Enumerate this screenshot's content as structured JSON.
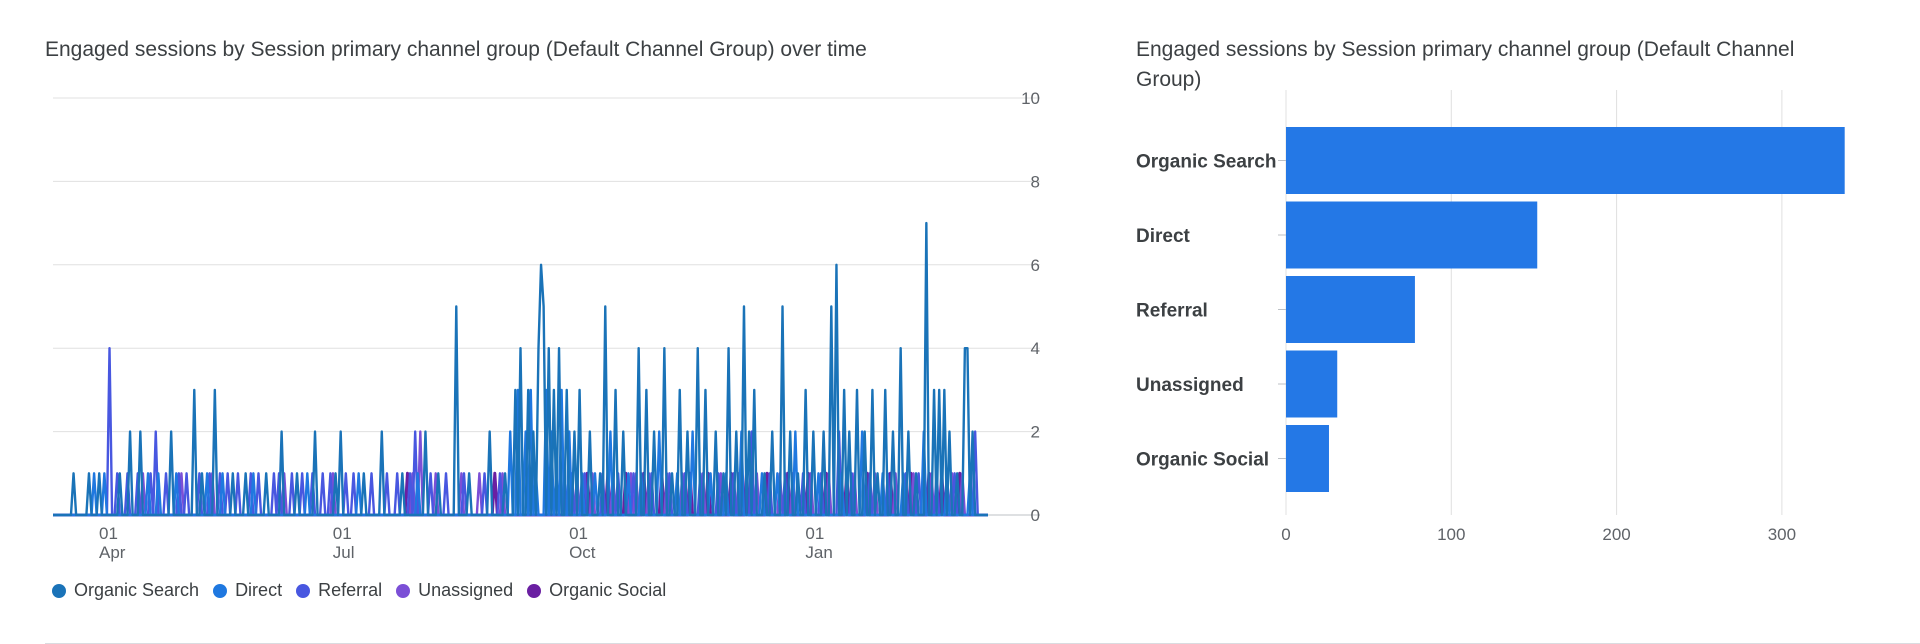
{
  "chart_data": [
    {
      "type": "line",
      "title": "Engaged sessions by Session primary channel group (Default Channel Group) over time",
      "yticks": [
        "0",
        "2",
        "4",
        "6",
        "8",
        "10"
      ],
      "ylim": [
        0,
        10
      ],
      "x_ticks": [
        {
          "day": "01",
          "month": "Apr",
          "index": 0
        },
        {
          "day": "01",
          "month": "Jul",
          "index": 91
        },
        {
          "day": "01",
          "month": "Oct",
          "index": 183
        },
        {
          "day": "01",
          "month": "Jan",
          "index": 275
        }
      ],
      "n_points": 365,
      "series": [
        {
          "name": "Organic Search",
          "color": "#1a73b8",
          "spikes": [
            [
              8,
              1
            ],
            [
              14,
              1
            ],
            [
              18,
              1
            ],
            [
              26,
              1
            ],
            [
              30,
              2
            ],
            [
              34,
              2
            ],
            [
              46,
              2
            ],
            [
              55,
              3
            ],
            [
              58,
              1
            ],
            [
              63,
              3
            ],
            [
              70,
              1
            ],
            [
              75,
              1
            ],
            [
              83,
              1
            ],
            [
              89,
              2
            ],
            [
              95,
              1
            ],
            [
              102,
              2
            ],
            [
              110,
              1
            ],
            [
              112,
              2
            ],
            [
              121,
              1
            ],
            [
              128,
              2
            ],
            [
              136,
              1
            ],
            [
              145,
              2
            ],
            [
              150,
              1
            ],
            [
              157,
              5
            ],
            [
              162,
              1
            ],
            [
              170,
              2
            ],
            [
              176,
              1
            ],
            [
              180,
              3
            ],
            [
              182,
              4
            ],
            [
              185,
              3
            ],
            [
              187,
              2
            ],
            [
              189,
              4
            ],
            [
              190,
              6
            ],
            [
              191,
              5
            ],
            [
              193,
              4
            ],
            [
              195,
              3
            ],
            [
              197,
              4
            ],
            [
              200,
              3
            ],
            [
              203,
              2
            ],
            [
              205,
              3
            ],
            [
              209,
              2
            ],
            [
              213,
              1
            ],
            [
              215,
              5
            ],
            [
              219,
              3
            ],
            [
              222,
              2
            ],
            [
              228,
              4
            ],
            [
              231,
              3
            ],
            [
              234,
              2
            ],
            [
              238,
              4
            ],
            [
              241,
              1
            ],
            [
              244,
              3
            ],
            [
              247,
              2
            ],
            [
              251,
              4
            ],
            [
              254,
              3
            ],
            [
              258,
              2
            ],
            [
              261,
              1
            ],
            [
              263,
              4
            ],
            [
              266,
              2
            ],
            [
              269,
              5
            ],
            [
              271,
              2
            ],
            [
              273,
              3
            ],
            [
              277,
              1
            ],
            [
              280,
              2
            ],
            [
              284,
              5
            ],
            [
              287,
              2
            ],
            [
              290,
              1
            ],
            [
              293,
              3
            ],
            [
              296,
              2
            ],
            [
              300,
              2
            ],
            [
              303,
              5
            ],
            [
              305,
              6
            ],
            [
              308,
              3
            ],
            [
              310,
              2
            ],
            [
              313,
              3
            ],
            [
              316,
              2
            ],
            [
              319,
              3
            ],
            [
              321,
              1
            ],
            [
              324,
              3
            ],
            [
              327,
              2
            ],
            [
              330,
              4
            ],
            [
              333,
              2
            ],
            [
              336,
              1
            ],
            [
              340,
              7
            ],
            [
              343,
              3
            ],
            [
              345,
              3
            ],
            [
              347,
              3
            ],
            [
              349,
              2
            ],
            [
              352,
              1
            ],
            [
              355,
              4
            ],
            [
              356,
              4
            ],
            [
              358,
              2
            ]
          ]
        },
        {
          "name": "Direct",
          "color": "#1f78e0",
          "spikes": [
            [
              16,
              1
            ],
            [
              20,
              1
            ],
            [
              37,
              1
            ],
            [
              41,
              1
            ],
            [
              48,
              1
            ],
            [
              60,
              1
            ],
            [
              66,
              1
            ],
            [
              78,
              1
            ],
            [
              99,
              1
            ],
            [
              119,
              1
            ],
            [
              142,
              1
            ],
            [
              178,
              2
            ],
            [
              181,
              3
            ],
            [
              184,
              2
            ],
            [
              186,
              3
            ],
            [
              188,
              1
            ],
            [
              192,
              3
            ],
            [
              194,
              2
            ],
            [
              196,
              1
            ],
            [
              198,
              3
            ],
            [
              201,
              2
            ],
            [
              206,
              1
            ],
            [
              211,
              1
            ],
            [
              217,
              2
            ],
            [
              224,
              1
            ],
            [
              229,
              1
            ],
            [
              236,
              2
            ],
            [
              243,
              1
            ],
            [
              249,
              2
            ],
            [
              256,
              1
            ],
            [
              262,
              1
            ],
            [
              268,
              2
            ],
            [
              276,
              1
            ],
            [
              282,
              1
            ],
            [
              289,
              2
            ],
            [
              298,
              1
            ],
            [
              307,
              1
            ],
            [
              315,
              2
            ],
            [
              323,
              1
            ],
            [
              331,
              1
            ],
            [
              339,
              2
            ],
            [
              348,
              1
            ],
            [
              357,
              1
            ]
          ]
        },
        {
          "name": "Referral",
          "color": "#4857e0",
          "spikes": [
            [
              22,
              4
            ],
            [
              25,
              1
            ],
            [
              29,
              1
            ],
            [
              33,
              1
            ],
            [
              38,
              1
            ],
            [
              40,
              2
            ],
            [
              44,
              1
            ],
            [
              49,
              1
            ],
            [
              52,
              1
            ],
            [
              57,
              1
            ],
            [
              61,
              1
            ],
            [
              65,
              1
            ],
            [
              68,
              1
            ],
            [
              72,
              1
            ],
            [
              77,
              1
            ],
            [
              80,
              1
            ],
            [
              86,
              1
            ],
            [
              88,
              1
            ],
            [
              93,
              1
            ],
            [
              97,
              1
            ],
            [
              101,
              1
            ],
            [
              105,
              1
            ],
            [
              108,
              1
            ],
            [
              114,
              1
            ],
            [
              117,
              1
            ],
            [
              124,
              1
            ],
            [
              130,
              1
            ],
            [
              134,
              1
            ],
            [
              139,
              1
            ],
            [
              141,
              2
            ],
            [
              147,
              1
            ],
            [
              153,
              1
            ],
            [
              160,
              1
            ],
            [
              168,
              1
            ],
            [
              174,
              1
            ],
            [
              199,
              1
            ],
            [
              202,
              1
            ],
            [
              207,
              1
            ],
            [
              214,
              1
            ],
            [
              220,
              1
            ],
            [
              226,
              1
            ],
            [
              233,
              1
            ],
            [
              240,
              1
            ],
            [
              246,
              1
            ],
            [
              252,
              1
            ],
            [
              259,
              1
            ],
            [
              265,
              1
            ],
            [
              272,
              2
            ],
            [
              279,
              1
            ],
            [
              285,
              1
            ],
            [
              292,
              1
            ],
            [
              299,
              1
            ],
            [
              306,
              2
            ],
            [
              311,
              1
            ],
            [
              318,
              1
            ],
            [
              325,
              1
            ],
            [
              332,
              1
            ],
            [
              337,
              1
            ],
            [
              344,
              1
            ],
            [
              351,
              1
            ],
            [
              359,
              2
            ]
          ]
        },
        {
          "name": "Unassigned",
          "color": "#7b4fd6",
          "spikes": [
            [
              35,
              1
            ],
            [
              50,
              1
            ],
            [
              62,
              1
            ],
            [
              90,
              1
            ],
            [
              109,
              1
            ],
            [
              140,
              1
            ],
            [
              143,
              2
            ],
            [
              149,
              1
            ],
            [
              159,
              1
            ],
            [
              166,
              1
            ],
            [
              175,
              1
            ],
            [
              204,
              1
            ],
            [
              210,
              1
            ],
            [
              218,
              1
            ],
            [
              225,
              1
            ],
            [
              227,
              1
            ],
            [
              232,
              1
            ],
            [
              239,
              1
            ],
            [
              245,
              1
            ],
            [
              253,
              1
            ],
            [
              260,
              1
            ],
            [
              267,
              1
            ],
            [
              274,
              1
            ],
            [
              283,
              1
            ],
            [
              288,
              1
            ],
            [
              295,
              1
            ],
            [
              302,
              1
            ],
            [
              312,
              1
            ],
            [
              320,
              1
            ],
            [
              328,
              1
            ],
            [
              335,
              1
            ],
            [
              342,
              1
            ],
            [
              350,
              1
            ],
            [
              354,
              1
            ]
          ]
        },
        {
          "name": "Organic Social",
          "color": "#6a1fa2",
          "spikes": [
            [
              138,
              1
            ],
            [
              172,
              1
            ],
            [
              208,
              1
            ],
            [
              216,
              1
            ],
            [
              223,
              1
            ],
            [
              230,
              1
            ],
            [
              237,
              1
            ],
            [
              248,
              1
            ],
            [
              255,
              1
            ],
            [
              264,
              1
            ],
            [
              270,
              1
            ],
            [
              278,
              1
            ],
            [
              286,
              1
            ],
            [
              294,
              1
            ],
            [
              301,
              1
            ],
            [
              309,
              1
            ],
            [
              317,
              1
            ],
            [
              326,
              1
            ],
            [
              334,
              1
            ],
            [
              341,
              1
            ],
            [
              346,
              1
            ],
            [
              353,
              1
            ]
          ]
        }
      ]
    },
    {
      "type": "bar",
      "orientation": "horizontal",
      "title": "Engaged sessions by Session primary channel group (Default Channel Group)",
      "categories": [
        "Organic Search",
        "Direct",
        "Referral",
        "Unassigned",
        "Organic Social"
      ],
      "values": [
        338,
        152,
        78,
        31,
        26
      ],
      "xlim": [
        0,
        340
      ],
      "xticks": [
        0,
        100,
        200,
        300
      ],
      "color": "#2478e6"
    }
  ]
}
